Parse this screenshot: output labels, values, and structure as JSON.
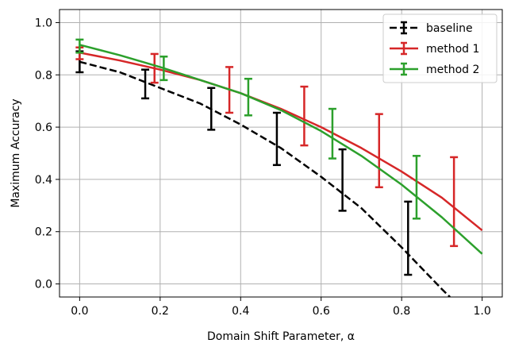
{
  "chart_data": {
    "type": "line",
    "xlabel": "Domain Shift Parameter, α",
    "ylabel": "Maximum Accuracy",
    "xlim": [
      -0.05,
      1.05
    ],
    "ylim": [
      -0.05,
      1.05
    ],
    "x_ticks": [
      0.0,
      0.2,
      0.4,
      0.6,
      0.8,
      1.0
    ],
    "x_tick_labels": [
      "0.0",
      "0.2",
      "0.4",
      "0.6",
      "0.8",
      "1.0"
    ],
    "y_ticks": [
      0.0,
      0.2,
      0.4,
      0.6,
      0.8,
      1.0
    ],
    "y_tick_labels": [
      "0.0",
      "0.2",
      "0.4",
      "0.6",
      "0.8",
      "1.0"
    ],
    "grid": true,
    "legend_position": "top-right",
    "series": [
      {
        "name": "baseline",
        "color": "#000000",
        "dash": "dashed",
        "curve": {
          "x": [
            0.0,
            0.1,
            0.2,
            0.3,
            0.4,
            0.5,
            0.6,
            0.7,
            0.8,
            0.9,
            0.92
          ],
          "y": [
            0.85,
            0.81,
            0.75,
            0.69,
            0.61,
            0.52,
            0.41,
            0.29,
            0.14,
            -0.02,
            -0.05
          ]
        },
        "error_bars": [
          {
            "x": 0.0,
            "y": 0.85,
            "low": 0.81,
            "high": 0.89
          },
          {
            "x": 0.163,
            "y": 0.765,
            "low": 0.71,
            "high": 0.82
          },
          {
            "x": 0.327,
            "y": 0.67,
            "low": 0.59,
            "high": 0.75
          },
          {
            "x": 0.49,
            "y": 0.555,
            "low": 0.455,
            "high": 0.655
          },
          {
            "x": 0.653,
            "y": 0.4,
            "low": 0.28,
            "high": 0.515
          },
          {
            "x": 0.816,
            "y": 0.175,
            "low": 0.035,
            "high": 0.315
          }
        ]
      },
      {
        "name": "method 1",
        "color": "#d62728",
        "dash": "solid",
        "curve": {
          "x": [
            0.0,
            0.1,
            0.2,
            0.3,
            0.4,
            0.5,
            0.6,
            0.7,
            0.8,
            0.9,
            1.0
          ],
          "y": [
            0.885,
            0.855,
            0.82,
            0.78,
            0.73,
            0.67,
            0.6,
            0.52,
            0.43,
            0.33,
            0.205
          ]
        },
        "error_bars": [
          {
            "x": 0.0,
            "y": 0.88,
            "low": 0.86,
            "high": 0.905
          },
          {
            "x": 0.186,
            "y": 0.825,
            "low": 0.77,
            "high": 0.88
          },
          {
            "x": 0.372,
            "y": 0.74,
            "low": 0.655,
            "high": 0.83
          },
          {
            "x": 0.558,
            "y": 0.645,
            "low": 0.53,
            "high": 0.755
          },
          {
            "x": 0.744,
            "y": 0.51,
            "low": 0.37,
            "high": 0.65
          },
          {
            "x": 0.93,
            "y": 0.315,
            "low": 0.145,
            "high": 0.485
          }
        ]
      },
      {
        "name": "method 2",
        "color": "#2ca02c",
        "dash": "solid",
        "curve": {
          "x": [
            0.0,
            0.1,
            0.2,
            0.3,
            0.4,
            0.5,
            0.6,
            0.7,
            0.8,
            0.9,
            1.0
          ],
          "y": [
            0.915,
            0.875,
            0.83,
            0.78,
            0.73,
            0.665,
            0.585,
            0.49,
            0.38,
            0.255,
            0.115
          ]
        },
        "error_bars": [
          {
            "x": 0.0,
            "y": 0.91,
            "low": 0.885,
            "high": 0.935
          },
          {
            "x": 0.209,
            "y": 0.825,
            "low": 0.78,
            "high": 0.87
          },
          {
            "x": 0.419,
            "y": 0.715,
            "low": 0.645,
            "high": 0.785
          },
          {
            "x": 0.628,
            "y": 0.575,
            "low": 0.48,
            "high": 0.67
          },
          {
            "x": 0.837,
            "y": 0.37,
            "low": 0.25,
            "high": 0.49
          }
        ]
      }
    ]
  }
}
